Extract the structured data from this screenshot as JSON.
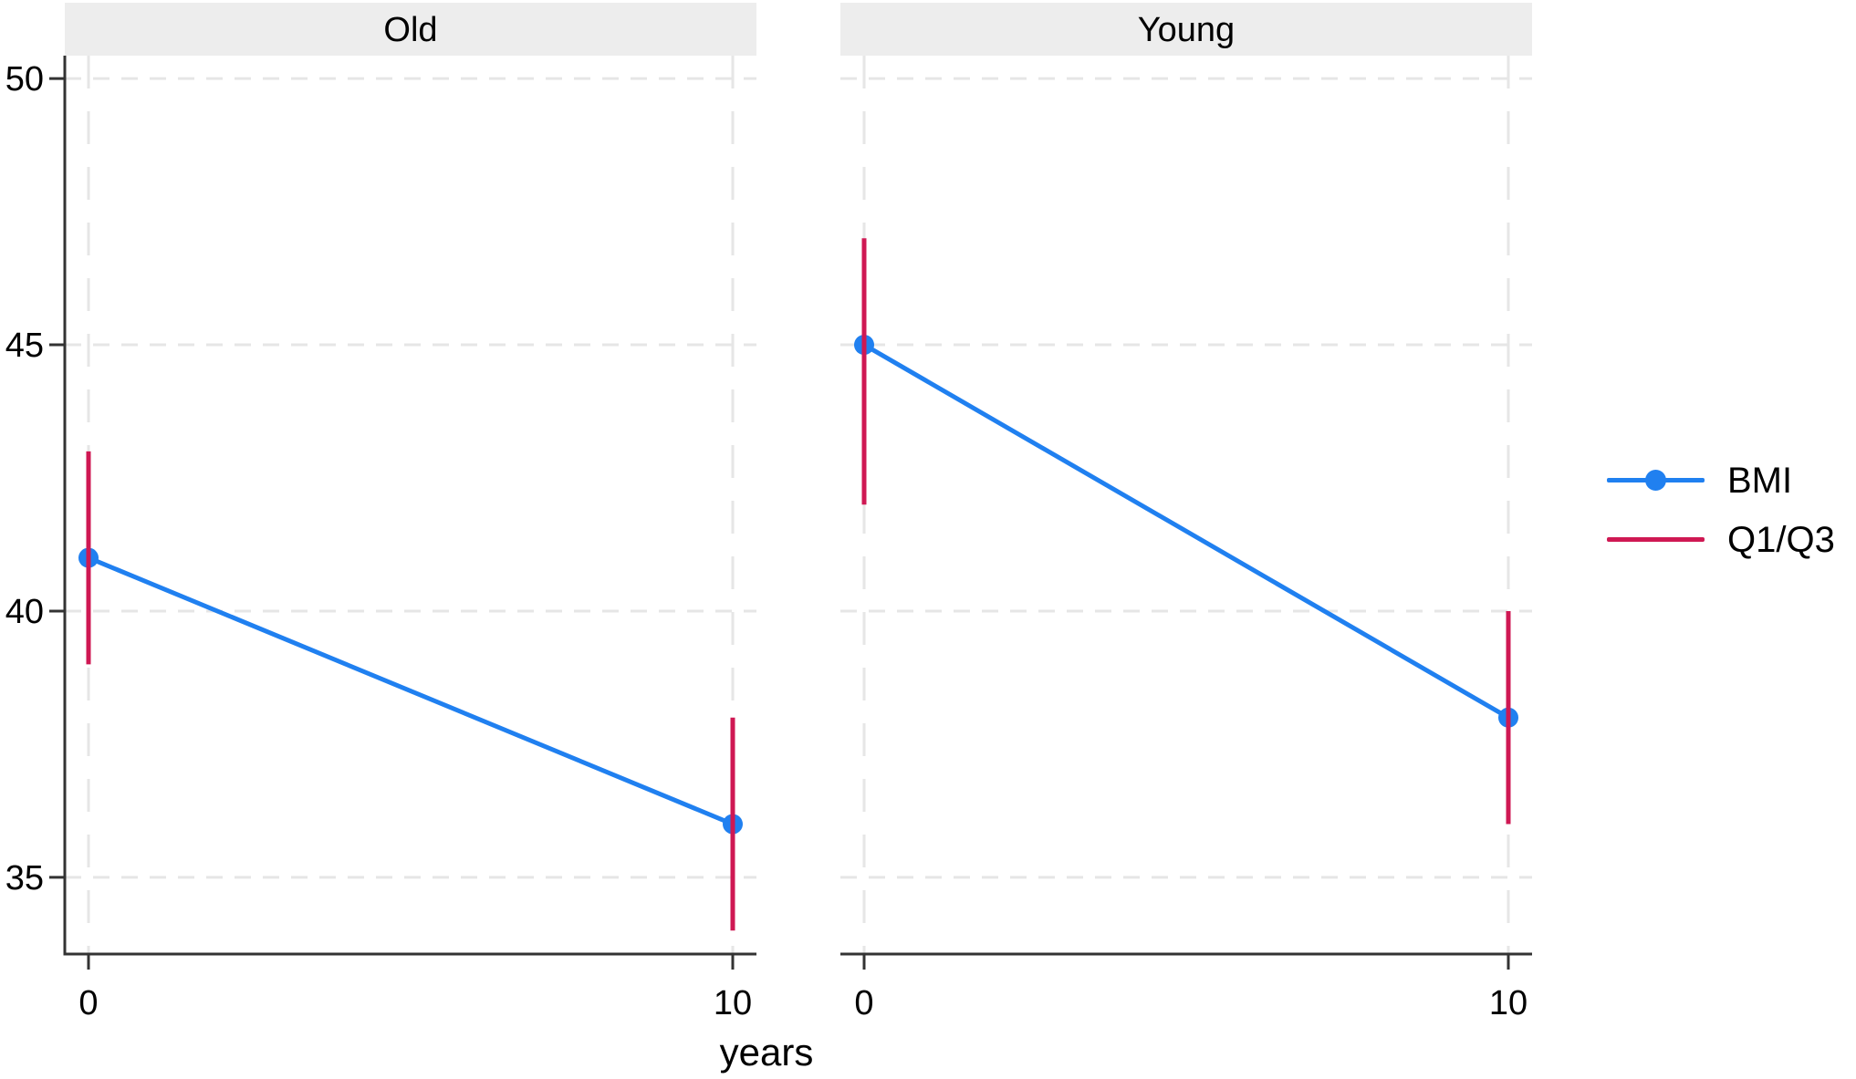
{
  "chart_data": {
    "type": "line",
    "description": "Faceted line chart of BMI over years with Q1/Q3 spikes",
    "facets": [
      {
        "title": "Old",
        "x": [
          0,
          10
        ],
        "series": {
          "BMI": [
            41,
            36
          ],
          "Q1": [
            39,
            34
          ],
          "Q3": [
            43,
            38
          ]
        }
      },
      {
        "title": "Young",
        "x": [
          0,
          10
        ],
        "series": {
          "BMI": [
            45,
            38
          ],
          "Q1": [
            42,
            36
          ],
          "Q3": [
            47,
            40
          ]
        }
      }
    ],
    "xlabel": "years",
    "x_ticks": [
      0,
      10
    ],
    "x_tick_labels": [
      "0",
      "10"
    ],
    "y_ticks": [
      35,
      40,
      45,
      50
    ],
    "y_tick_labels": [
      "35",
      "40",
      "45",
      "50"
    ],
    "ylim": [
      33.56,
      50.43
    ],
    "grid": "dashed horizontal at y ticks, dashed vertical at x ticks",
    "legend_position": "right-middle",
    "legend": [
      {
        "label": "BMI",
        "series": "bmi"
      },
      {
        "label": "Q1/Q3",
        "series": "q1q3"
      }
    ],
    "colors": {
      "bmi": "#2080F0",
      "q1q3": "#CF1853",
      "axis": "#333333",
      "grid": "#E6E6E6",
      "strip_bg": "#EDEDED",
      "text": "#000000"
    }
  }
}
